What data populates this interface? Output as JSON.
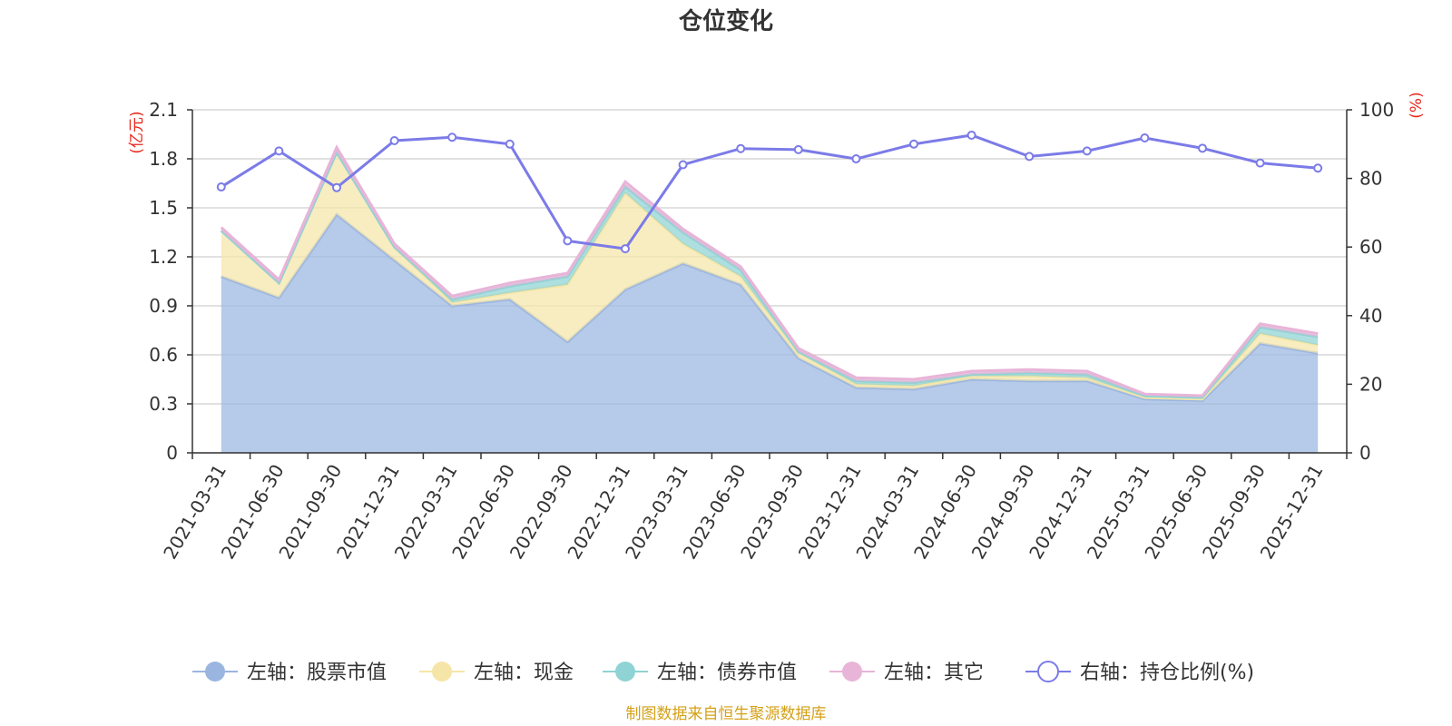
{
  "chart_data": {
    "type": "area",
    "title": "仓位变化",
    "left_axis": {
      "unit": "(亿元)",
      "ylim": [
        0,
        2.1
      ],
      "ticks": [
        "0",
        "0.3",
        "0.6",
        "0.9",
        "1.2",
        "1.5",
        "1.8",
        "2.1"
      ]
    },
    "right_axis": {
      "unit": "(%)",
      "ylim": [
        0,
        100
      ],
      "ticks": [
        "0",
        "20",
        "40",
        "60",
        "80",
        "100"
      ]
    },
    "categories": [
      "2021-03-31",
      "2021-06-30",
      "2021-09-30",
      "2021-12-31",
      "2022-03-31",
      "2022-06-30",
      "2022-09-30",
      "2022-12-31",
      "2023-03-31",
      "2023-06-30",
      "2023-09-30",
      "2023-12-31",
      "2024-03-31",
      "2024-06-30",
      "2024-09-30",
      "2024-12-31",
      "2025-03-31",
      "2025-06-30",
      "2025-09-30",
      "2025-12-31"
    ],
    "series": [
      {
        "name": "左轴：股票市值",
        "axis": "left",
        "color": "#9ab5e0",
        "values": [
          1.08,
          0.95,
          1.46,
          1.18,
          0.9,
          0.94,
          0.68,
          1.0,
          1.16,
          1.03,
          0.58,
          0.4,
          0.39,
          0.45,
          0.44,
          0.44,
          0.33,
          0.32,
          0.67,
          0.61
        ]
      },
      {
        "name": "左轴：现金",
        "axis": "left",
        "color": "#f5e6a8",
        "values": [
          0.28,
          0.09,
          0.38,
          0.08,
          0.02,
          0.04,
          0.35,
          0.59,
          0.12,
          0.05,
          0.03,
          0.02,
          0.02,
          0.02,
          0.03,
          0.02,
          0.01,
          0.01,
          0.06,
          0.05
        ]
      },
      {
        "name": "左轴：债券市值",
        "axis": "left",
        "color": "#8fd3d4",
        "values": [
          0.0,
          0.0,
          0.0,
          0.0,
          0.02,
          0.04,
          0.05,
          0.04,
          0.07,
          0.04,
          0.01,
          0.02,
          0.02,
          0.01,
          0.02,
          0.02,
          0.01,
          0.01,
          0.04,
          0.05
        ]
      },
      {
        "name": "左轴：其它",
        "axis": "left",
        "color": "#e8b4d8",
        "values": [
          0.02,
          0.02,
          0.03,
          0.02,
          0.02,
          0.02,
          0.02,
          0.03,
          0.02,
          0.02,
          0.02,
          0.02,
          0.02,
          0.02,
          0.02,
          0.02,
          0.01,
          0.01,
          0.02,
          0.02
        ]
      },
      {
        "name": "右轴：持仓比例(%)",
        "axis": "right",
        "color": "#7b7be8",
        "type": "line",
        "values": [
          77.5,
          88.0,
          77.3,
          91.0,
          92.0,
          90.0,
          61.8,
          59.5,
          84.0,
          88.7,
          88.4,
          85.7,
          90.0,
          92.6,
          86.4,
          88.0,
          91.8,
          88.8,
          84.5,
          83.0
        ]
      }
    ],
    "legend_position": "bottom"
  },
  "footer": {
    "source": "制图数据来自恒生聚源数据库"
  }
}
